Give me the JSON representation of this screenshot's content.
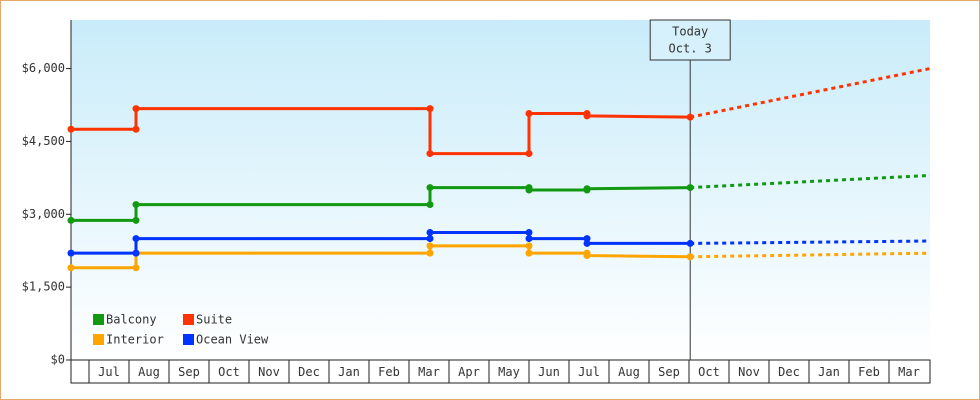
{
  "chart_data": {
    "type": "line",
    "step_points": true,
    "x": [
      -0.45,
      1.175,
      1.175,
      8.525,
      8.525,
      11.0,
      11.0,
      12.45,
      12.45,
      15.03
    ],
    "forecast_x": [
      15.03,
      21.025
    ],
    "series": [
      {
        "name": "Balcony",
        "color": "#119911",
        "values": [
          2875,
          2875,
          3200,
          3200,
          3550,
          3550,
          3500,
          3500,
          3525,
          3550
        ],
        "forecast": [
          3550,
          3800
        ]
      },
      {
        "name": "Suite",
        "color": "#ff3300",
        "values": [
          4750,
          4750,
          5175,
          5175,
          4250,
          4250,
          5075,
          5075,
          5025,
          5000
        ],
        "forecast": [
          5000,
          6000
        ]
      },
      {
        "name": "Interior",
        "color": "#ffa500",
        "values": [
          1900,
          1900,
          2200,
          2200,
          2350,
          2350,
          2200,
          2200,
          2150,
          2125
        ],
        "forecast": [
          2125,
          2200
        ]
      },
      {
        "name": "Ocean View",
        "color": "#0033ff",
        "values": [
          2200,
          2200,
          2500,
          2500,
          2625,
          2625,
          2500,
          2500,
          2400,
          2400
        ],
        "forecast": [
          2400,
          2450
        ]
      }
    ],
    "xlim": [
      -0.45,
      21.025
    ],
    "xticks": [
      {
        "value": 0.5,
        "label": "Jul"
      },
      {
        "value": 1.5,
        "label": "Aug"
      },
      {
        "value": 2.5,
        "label": "Sep"
      },
      {
        "value": 3.5,
        "label": "Oct"
      },
      {
        "value": 4.5,
        "label": "Nov"
      },
      {
        "value": 5.5,
        "label": "Dec"
      },
      {
        "value": 6.5,
        "label": "Jan"
      },
      {
        "value": 7.5,
        "label": "Feb"
      },
      {
        "value": 8.5,
        "label": "Mar"
      },
      {
        "value": 9.5,
        "label": "Apr"
      },
      {
        "value": 10.5,
        "label": "May"
      },
      {
        "value": 11.5,
        "label": "Jun"
      },
      {
        "value": 12.5,
        "label": "Jul"
      },
      {
        "value": 13.5,
        "label": "Aug"
      },
      {
        "value": 14.5,
        "label": "Sep"
      },
      {
        "value": 15.5,
        "label": "Oct"
      },
      {
        "value": 16.5,
        "label": "Nov"
      },
      {
        "value": 17.5,
        "label": "Dec"
      },
      {
        "value": 18.5,
        "label": "Jan"
      },
      {
        "value": 19.5,
        "label": "Feb"
      },
      {
        "value": 20.5,
        "label": "Mar"
      }
    ],
    "ylim": [
      0,
      7000
    ],
    "yticks": [
      {
        "value": 0,
        "label": "$0"
      },
      {
        "value": 1500,
        "label": "$1,500"
      },
      {
        "value": 3000,
        "label": "$3,000"
      },
      {
        "value": 4500,
        "label": "$4,500"
      },
      {
        "value": 6000,
        "label": "$6,000"
      }
    ],
    "today": {
      "x": 15.03,
      "lines": [
        "Today",
        "Oct. 3"
      ]
    },
    "legend": "lower-left"
  }
}
